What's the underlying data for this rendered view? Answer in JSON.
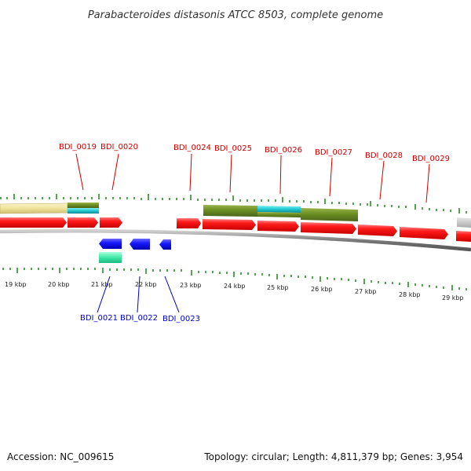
{
  "title": "Parabacteroides distasonis ATCC 8503, complete genome",
  "footer": {
    "accession": "Accession: NC_009615",
    "summary": "Topology: circular; Length: 4,811,379 bp; Genes: 3,954"
  },
  "colors": {
    "tick": "#2e8b2e",
    "backbone": "#888888",
    "gene_forward": "#ff0000",
    "gene_reverse": "#0000ff",
    "label_forward": "#cc0000",
    "label_reverse": "#0000cc",
    "feature_olive": "#6b8e23",
    "feature_cyan": "#20c0c8",
    "feature_khaki": "#f0e6a0",
    "feature_mint": "#3fe8a8",
    "feature_grey": "#bbbbbb"
  },
  "kbp_labels": [
    "19 kbp",
    "20 kbp",
    "21 kbp",
    "22 kbp",
    "23 kbp",
    "24 kbp",
    "25 kbp",
    "26 kbp",
    "27 kbp",
    "28 kbp",
    "29 kbp"
  ],
  "forward_gene_labels": [
    "BDI_0019",
    "BDI_0020",
    "BDI_0024",
    "BDI_0025",
    "BDI_0026",
    "BDI_0027",
    "BDI_0028",
    "BDI_0029"
  ],
  "reverse_gene_labels": [
    "BDI_0021",
    "BDI_0022",
    "BDI_0023"
  ]
}
